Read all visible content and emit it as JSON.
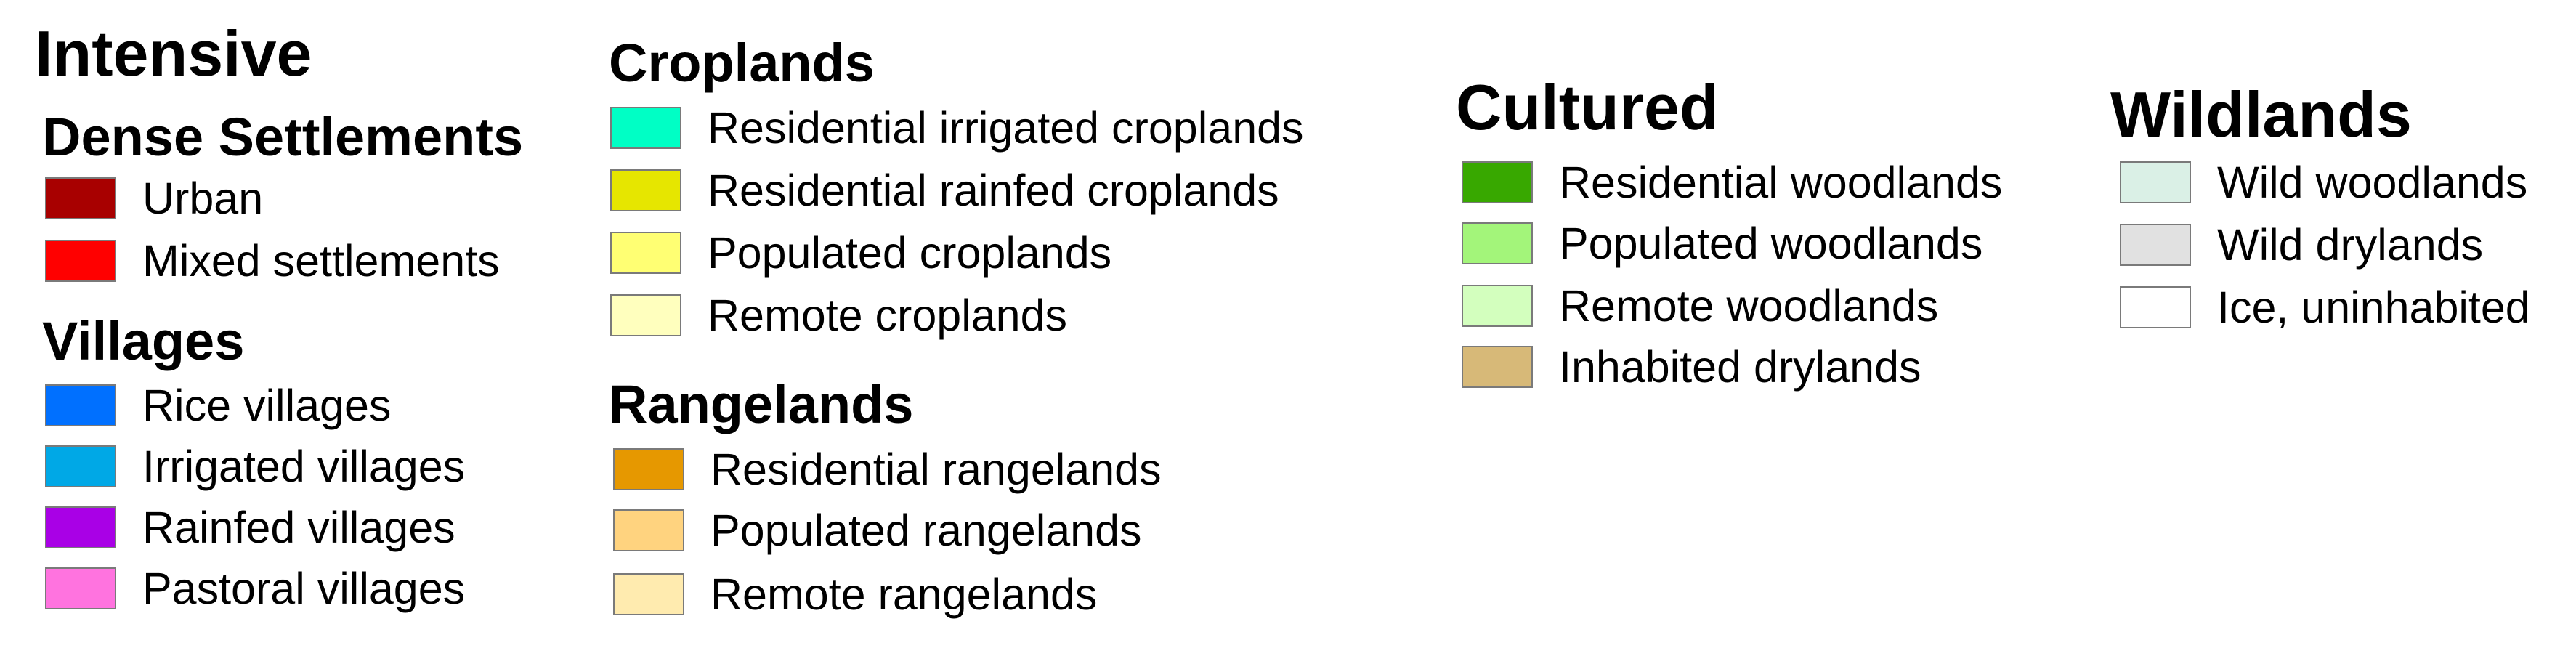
{
  "legend": {
    "intensive": {
      "title": "Intensive",
      "dense": {
        "title": "Dense Settlements",
        "items": [
          {
            "label": "Urban",
            "color": "#a80000"
          },
          {
            "label": "Mixed settlements",
            "color": "#ff0000"
          }
        ]
      },
      "villages": {
        "title": "Villages",
        "items": [
          {
            "label": "Rice villages",
            "color": "#0070ff"
          },
          {
            "label": "Irrigated villages",
            "color": "#00a8e6"
          },
          {
            "label": "Rainfed villages",
            "color": "#a900e6"
          },
          {
            "label": "Pastoral villages",
            "color": "#ff73df"
          }
        ]
      }
    },
    "croplands": {
      "title": "Croplands",
      "items": [
        {
          "label": "Residential irrigated croplands",
          "color": "#00ffc5"
        },
        {
          "label": "Residential rainfed croplands",
          "color": "#e6e600"
        },
        {
          "label": "Populated croplands",
          "color": "#ffff73"
        },
        {
          "label": "Remote croplands",
          "color": "#ffffbe"
        }
      ]
    },
    "rangelands": {
      "title": "Rangelands",
      "items": [
        {
          "label": "Residential rangelands",
          "color": "#e69800"
        },
        {
          "label": "Populated rangelands",
          "color": "#ffd37f"
        },
        {
          "label": "Remote rangelands",
          "color": "#ffebaf"
        }
      ]
    },
    "cultured": {
      "title": "Cultured",
      "items": [
        {
          "label": "Residential woodlands",
          "color": "#38a800"
        },
        {
          "label": "Populated woodlands",
          "color": "#a3f57a"
        },
        {
          "label": "Remote woodlands",
          "color": "#d3ffbe"
        },
        {
          "label": "Inhabited drylands",
          "color": "#d7b978"
        }
      ]
    },
    "wildlands": {
      "title": "Wildlands",
      "items": [
        {
          "label": "Wild woodlands",
          "color": "#daf0e6"
        },
        {
          "label": "Wild drylands",
          "color": "#e1e1e1"
        },
        {
          "label": "Ice, uninhabited",
          "color": "#ffffff"
        }
      ]
    }
  }
}
